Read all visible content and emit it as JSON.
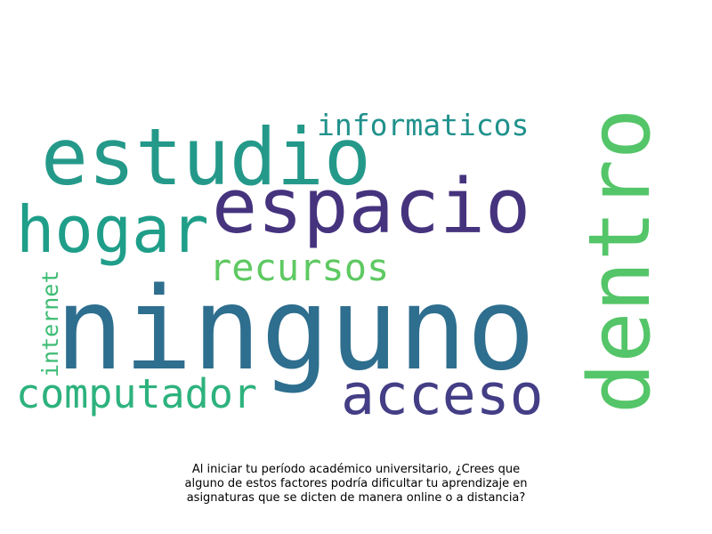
{
  "words": [
    {
      "text": "ninguno",
      "color": "#2e6e8e"
    },
    {
      "text": "espacio",
      "color": "#46337e"
    },
    {
      "text": "estudio",
      "color": "#24998a"
    },
    {
      "text": "dentro",
      "color": "#54c568"
    },
    {
      "text": "hogar",
      "color": "#1f9e89"
    },
    {
      "text": "acceso",
      "color": "#433e85"
    },
    {
      "text": "computador",
      "color": "#2db27d"
    },
    {
      "text": "recursos",
      "color": "#5ec962"
    },
    {
      "text": "informaticos",
      "color": "#21918c"
    },
    {
      "text": "internet",
      "color": "#3dbc74"
    }
  ],
  "caption": {
    "line1": "Al iniciar tu período académico universitario, ¿Crees que",
    "line2": "alguno de estos factores podría dificultar tu aprendizaje en",
    "line3": "asignaturas que se dicten de manera online o a distancia?"
  }
}
